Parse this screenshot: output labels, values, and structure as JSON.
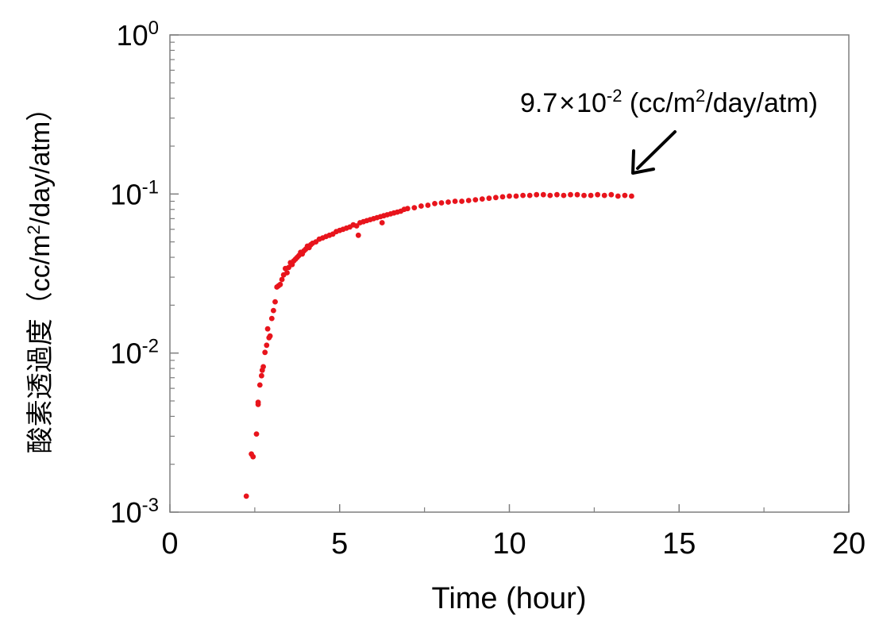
{
  "chart_data": {
    "type": "scatter",
    "title": "",
    "xlabel": "Time (hour)",
    "ylabel_main": "酸素透過度",
    "ylabel_units": "（cc/m",
    "ylabel_units_sup": "2",
    "ylabel_units_tail": "/day/atm）",
    "x_ticks": [
      "0",
      "5",
      "10",
      "15",
      "20"
    ],
    "y_ticks": [
      {
        "base": "10",
        "exp": "0"
      },
      {
        "base": "10",
        "exp": "-1"
      },
      {
        "base": "10",
        "exp": "-2"
      },
      {
        "base": "10",
        "exp": "-3"
      }
    ],
    "xlim": [
      0,
      20
    ],
    "ylim": [
      0.001,
      1
    ],
    "y_scale": "log",
    "grid": false,
    "marker_color": "#e8141c",
    "annotation": {
      "prefix": "9.7",
      "times": "×",
      "ten": "10",
      "exp": "-2",
      "unit_a": " (cc/m",
      "unit_sup": "2",
      "unit_b": "/day/atm)",
      "target_x": 13.6,
      "target_y": 0.097
    },
    "series": [
      {
        "points": [
          [
            2.25,
            0.00126
          ],
          [
            2.4,
            0.00232
          ],
          [
            2.45,
            0.00223
          ],
          [
            2.55,
            0.0031
          ],
          [
            2.6,
            0.00475
          ],
          [
            2.6,
            0.0049
          ],
          [
            2.65,
            0.0063
          ],
          [
            2.7,
            0.0072
          ],
          [
            2.72,
            0.0078
          ],
          [
            2.75,
            0.0082
          ],
          [
            2.8,
            0.0101
          ],
          [
            2.85,
            0.0112
          ],
          [
            2.88,
            0.0142
          ],
          [
            2.92,
            0.0125
          ],
          [
            2.95,
            0.0128
          ],
          [
            3.0,
            0.0165
          ],
          [
            3.05,
            0.0185
          ],
          [
            3.1,
            0.021
          ],
          [
            3.15,
            0.026
          ],
          [
            3.2,
            0.0265
          ],
          [
            3.25,
            0.027
          ],
          [
            3.3,
            0.029
          ],
          [
            3.35,
            0.031
          ],
          [
            3.4,
            0.034
          ],
          [
            3.45,
            0.032
          ],
          [
            3.5,
            0.0345
          ],
          [
            3.55,
            0.037
          ],
          [
            3.6,
            0.036
          ],
          [
            3.65,
            0.038
          ],
          [
            3.7,
            0.039
          ],
          [
            3.75,
            0.04
          ],
          [
            3.8,
            0.041
          ],
          [
            3.85,
            0.043
          ],
          [
            3.9,
            0.042
          ],
          [
            3.95,
            0.044
          ],
          [
            4.0,
            0.045
          ],
          [
            4.05,
            0.047
          ],
          [
            4.1,
            0.046
          ],
          [
            4.15,
            0.048
          ],
          [
            4.2,
            0.049
          ],
          [
            4.3,
            0.05
          ],
          [
            4.4,
            0.052
          ],
          [
            4.5,
            0.053
          ],
          [
            4.6,
            0.054
          ],
          [
            4.7,
            0.055
          ],
          [
            4.8,
            0.056
          ],
          [
            4.9,
            0.058
          ],
          [
            5.0,
            0.059
          ],
          [
            5.1,
            0.06
          ],
          [
            5.2,
            0.061
          ],
          [
            5.3,
            0.062
          ],
          [
            5.4,
            0.064
          ],
          [
            5.5,
            0.063
          ],
          [
            5.55,
            0.055
          ],
          [
            5.6,
            0.066
          ],
          [
            5.7,
            0.067
          ],
          [
            5.8,
            0.068
          ],
          [
            5.9,
            0.069
          ],
          [
            6.0,
            0.07
          ],
          [
            6.1,
            0.071
          ],
          [
            6.2,
            0.072
          ],
          [
            6.25,
            0.066
          ],
          [
            6.3,
            0.073
          ],
          [
            6.4,
            0.074
          ],
          [
            6.5,
            0.075
          ],
          [
            6.6,
            0.076
          ],
          [
            6.7,
            0.077
          ],
          [
            6.8,
            0.078
          ],
          [
            6.9,
            0.08
          ],
          [
            7.0,
            0.081
          ],
          [
            7.2,
            0.082
          ],
          [
            7.4,
            0.084
          ],
          [
            7.6,
            0.085
          ],
          [
            7.8,
            0.087
          ],
          [
            8.0,
            0.088
          ],
          [
            8.2,
            0.089
          ],
          [
            8.4,
            0.09
          ],
          [
            8.6,
            0.09
          ],
          [
            8.8,
            0.091
          ],
          [
            9.0,
            0.092
          ],
          [
            9.2,
            0.093
          ],
          [
            9.4,
            0.094
          ],
          [
            9.6,
            0.095
          ],
          [
            9.8,
            0.096
          ],
          [
            10.0,
            0.097
          ],
          [
            10.2,
            0.097
          ],
          [
            10.4,
            0.098
          ],
          [
            10.6,
            0.098
          ],
          [
            10.8,
            0.099
          ],
          [
            11.0,
            0.099
          ],
          [
            11.2,
            0.098
          ],
          [
            11.4,
            0.099
          ],
          [
            11.6,
            0.098
          ],
          [
            11.8,
            0.099
          ],
          [
            12.0,
            0.099
          ],
          [
            12.2,
            0.098
          ],
          [
            12.4,
            0.098
          ],
          [
            12.6,
            0.099
          ],
          [
            12.8,
            0.098
          ],
          [
            13.0,
            0.099
          ],
          [
            13.2,
            0.097
          ],
          [
            13.4,
            0.098
          ],
          [
            13.6,
            0.097
          ]
        ]
      }
    ]
  }
}
